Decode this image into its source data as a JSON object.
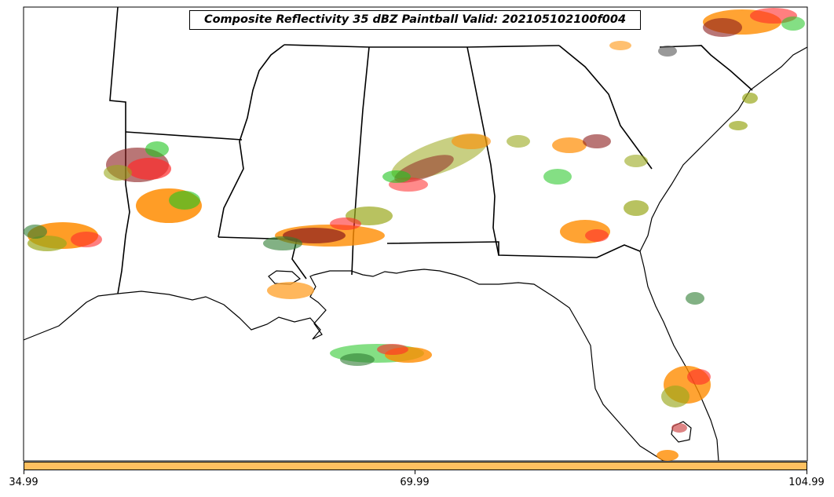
{
  "title": "Composite Reflectivity 35 dBZ Paintball Valid: 202105102100f004",
  "map": {
    "region": "Southeastern United States",
    "background": "#ffffff",
    "outline_color": "#000000"
  },
  "members_palette": [
    "#ff2a2a",
    "#ff8c00",
    "#ffa533",
    "#9aa81c",
    "#1fc41f",
    "#2e7d32",
    "#8b1a1a",
    "#555555",
    "#4ddc4d",
    "#d05050"
  ],
  "colorbar": {
    "color": "#ffc060",
    "ticks": [
      {
        "value": 34.99,
        "label": "34.99"
      },
      {
        "value": 69.99,
        "label": "69.99"
      },
      {
        "value": 104.99,
        "label": "104.99"
      }
    ],
    "min": 34.99,
    "max": 104.99
  }
}
